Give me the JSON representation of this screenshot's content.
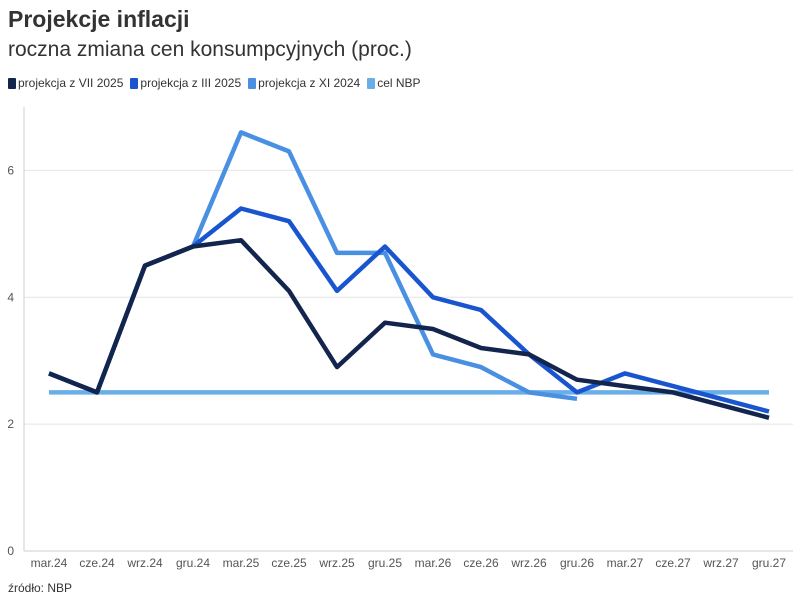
{
  "title": "Projekcje inflacji",
  "subtitle": "roczna zmiana cen konsumpcyjnych (proc.)",
  "source": "źródło: NBP",
  "chart_data": {
    "type": "line",
    "title": "Projekcje inflacji",
    "subtitle": "roczna zmiana cen konsumpcyjnych (proc.)",
    "xlabel": "",
    "ylabel": "",
    "grid": true,
    "legend_position": "top-left",
    "ylim": [
      0,
      7
    ],
    "y_ticks": [
      0,
      2,
      4,
      6
    ],
    "x_tick_labels": [
      "mar.24",
      "cze.24",
      "wrz.24",
      "gru.24",
      "mar.25",
      "cze.25",
      "wrz.25",
      "gru.25",
      "mar.26",
      "cze.26",
      "wrz.26",
      "gru.26",
      "mar.27",
      "cze.27",
      "wrz.27",
      "gru.27"
    ],
    "categories": [
      "mar.24",
      "cze.24",
      "wrz.24",
      "gru.24",
      "mar.25",
      "cze.25",
      "wrz.25",
      "gru.25",
      "mar.26",
      "cze.26",
      "wrz.26",
      "gru.26",
      "mar.27",
      "cze.27",
      "wrz.27",
      "gru.27"
    ],
    "series": [
      {
        "name": "cel NBP",
        "color": "#6aaee8",
        "values": [
          2.5,
          2.5,
          2.5,
          2.5,
          2.5,
          2.5,
          2.5,
          2.5,
          2.5,
          2.5,
          2.5,
          2.5,
          2.5,
          2.5,
          2.5,
          2.5
        ]
      },
      {
        "name": "projekcja z XI 2024",
        "color": "#4a90e2",
        "values": [
          2.8,
          2.5,
          4.5,
          4.8,
          6.6,
          6.3,
          4.7,
          4.7,
          3.1,
          2.9,
          2.5,
          2.4,
          null,
          null,
          null,
          null
        ]
      },
      {
        "name": "projekcja z III 2025",
        "color": "#1a55d0",
        "values": [
          2.8,
          2.5,
          4.5,
          4.8,
          5.4,
          5.2,
          4.1,
          4.8,
          4.0,
          3.8,
          3.1,
          2.5,
          2.8,
          2.6,
          2.4,
          2.2
        ]
      },
      {
        "name": "projekcja z VII 2025",
        "color": "#13254d",
        "values": [
          2.8,
          2.5,
          4.5,
          4.8,
          4.9,
          4.1,
          2.9,
          3.6,
          3.5,
          3.2,
          3.1,
          2.7,
          2.6,
          2.5,
          2.3,
          2.1
        ]
      }
    ],
    "legend": [
      {
        "name": "projekcja z VII 2025",
        "color": "#13254d"
      },
      {
        "name": "projekcja z III 2025",
        "color": "#1a55d0"
      },
      {
        "name": "projekcja z XI 2024",
        "color": "#4a90e2"
      },
      {
        "name": "cel NBP",
        "color": "#6aaee8"
      }
    ]
  }
}
